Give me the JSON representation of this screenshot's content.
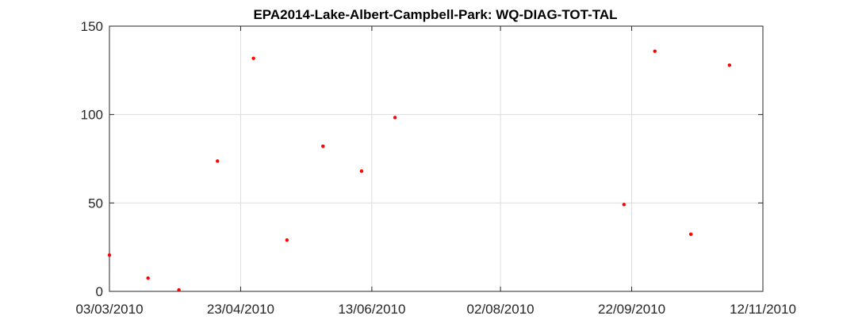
{
  "chart_data": {
    "type": "scatter",
    "title": "EPA2014-Lake-Albert-Campbell-Park: WQ-DIAG-TOT-TAL",
    "xlabel": "",
    "ylabel": "",
    "x_axis_type": "date",
    "xlim": [
      "2010-03-03",
      "2010-11-12"
    ],
    "ylim": [
      0,
      150
    ],
    "x_ticks": [
      {
        "date": "2010-03-03",
        "label": "03/03/2010"
      },
      {
        "date": "2010-04-23",
        "label": "23/04/2010"
      },
      {
        "date": "2010-06-13",
        "label": "13/06/2010"
      },
      {
        "date": "2010-08-02",
        "label": "02/08/2010"
      },
      {
        "date": "2010-09-22",
        "label": "22/09/2010"
      },
      {
        "date": "2010-11-12",
        "label": "12/11/2010"
      }
    ],
    "y_ticks": [
      0,
      50,
      100,
      150
    ],
    "grid": true,
    "marker_color": "#ff0000",
    "points": [
      {
        "x": "2010-03-03",
        "y": 20.5
      },
      {
        "x": "2010-03-18",
        "y": 7.5
      },
      {
        "x": "2010-03-30",
        "y": 0.8
      },
      {
        "x": "2010-04-14",
        "y": 73.7
      },
      {
        "x": "2010-04-28",
        "y": 131.8
      },
      {
        "x": "2010-05-11",
        "y": 29.0
      },
      {
        "x": "2010-05-25",
        "y": 82.1
      },
      {
        "x": "2010-06-09",
        "y": 68.0
      },
      {
        "x": "2010-06-22",
        "y": 98.3
      },
      {
        "x": "2010-09-19",
        "y": 49.1
      },
      {
        "x": "2010-10-01",
        "y": 135.8
      },
      {
        "x": "2010-10-15",
        "y": 32.3
      },
      {
        "x": "2010-10-30",
        "y": 127.9
      }
    ]
  }
}
